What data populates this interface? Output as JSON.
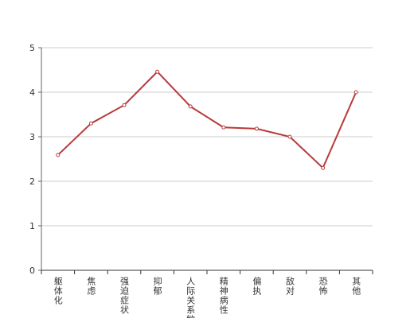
{
  "chart_data": {
    "type": "line",
    "categories": [
      "躯体化",
      "焦虑",
      "强迫症状",
      "抑郁",
      "人际关系敏感",
      "精神病性",
      "偏执",
      "敌对",
      "恐怖",
      "其他"
    ],
    "series": [
      {
        "color": "#b83a3a",
        "values": [
          2.59,
          3.3,
          3.71,
          4.46,
          3.68,
          3.21,
          3.18,
          3.0,
          2.3,
          4.0
        ]
      }
    ],
    "ylim": [
      0,
      5
    ],
    "yticks": [
      0,
      1,
      2,
      3,
      4,
      5
    ],
    "grid": true
  }
}
